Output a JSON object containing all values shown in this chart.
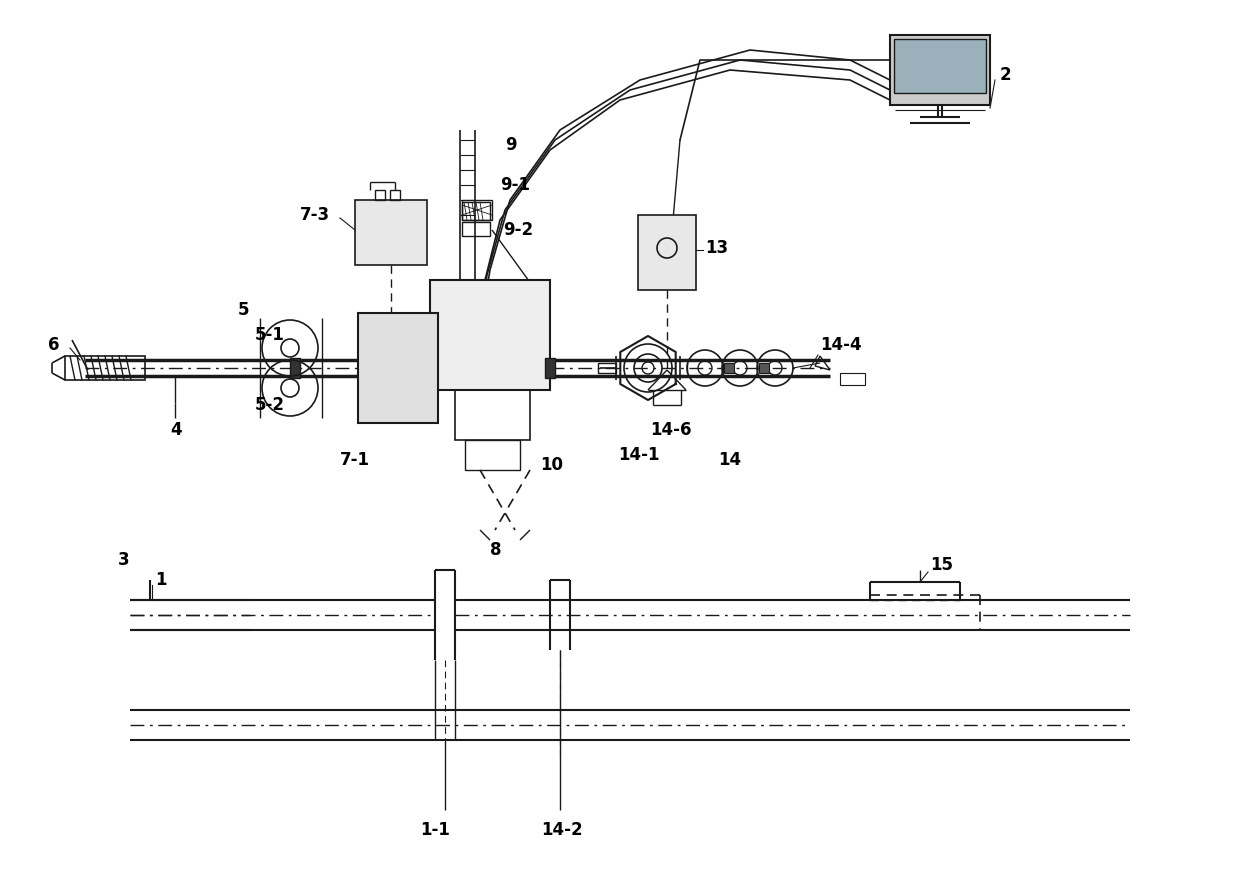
{
  "bg_color": "#ffffff",
  "line_color": "#1a1a1a",
  "fig_width": 12.4,
  "fig_height": 8.76,
  "font_size": 12,
  "font_weight": "bold"
}
